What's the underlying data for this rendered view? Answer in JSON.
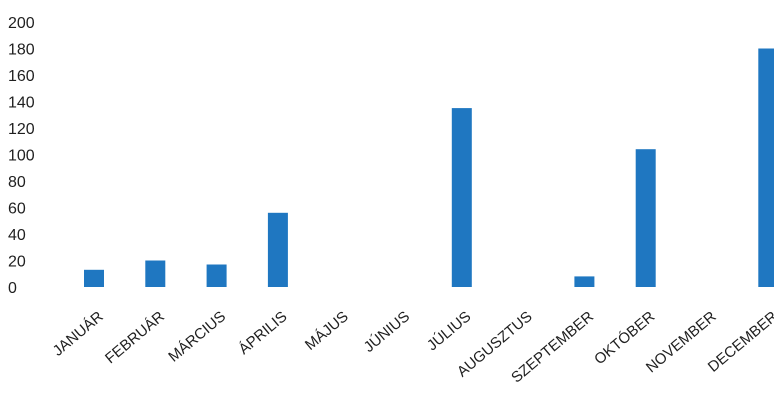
{
  "chart_data": {
    "type": "bar",
    "title": "",
    "xlabel": "",
    "ylabel": "",
    "ylim": [
      0,
      200
    ],
    "yticks": [
      0,
      20,
      40,
      60,
      80,
      100,
      120,
      140,
      160,
      180,
      200
    ],
    "grid": false,
    "legend": "none",
    "bar_color": "#1f77c1",
    "categories": [
      "JANUÁR",
      "FEBRUÁR",
      "MÁRCIUS",
      "ÁPRILIS",
      "MÁJUS",
      "JÚNIUS",
      "JÚLIUS",
      "AUGUSZTUS",
      "SZEPTEMBER",
      "OKTÓBER",
      "NOVEMBER",
      "DECEMBER"
    ],
    "values": [
      13,
      20,
      17,
      56,
      0,
      0,
      135,
      0,
      8,
      104,
      0,
      180
    ]
  }
}
